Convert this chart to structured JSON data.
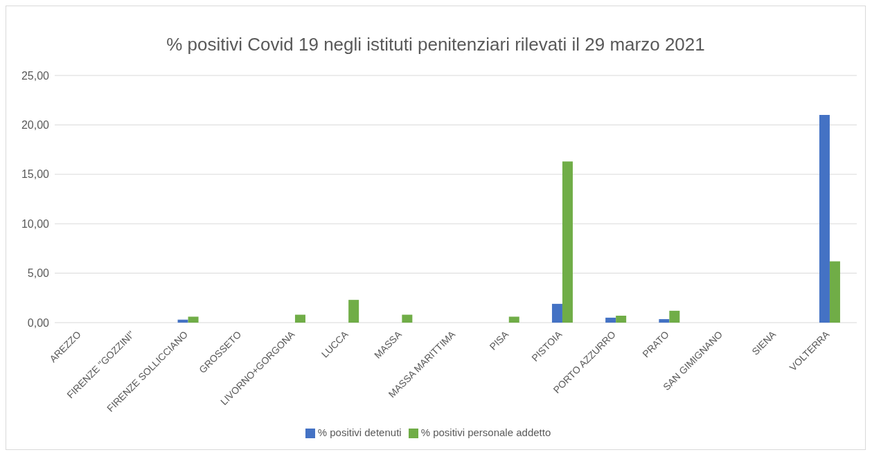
{
  "chart_data": {
    "type": "bar",
    "title": "% positivi Covid 19 negli istituti penitenziari rilevati il 29 marzo 2021",
    "categories": [
      "AREZZO",
      "FIRENZE \"GOZZINI\"",
      "FIRENZE SOLLICCIANO",
      "GROSSETO",
      "LIVORNO+GORGONA",
      "LUCCA",
      "MASSA",
      "MASSA MARITTIMA",
      "PISA",
      "PISTOIA",
      "PORTO AZZURRO",
      "PRATO",
      "SAN GIMIGNANO",
      "SIENA",
      "VOLTERRA"
    ],
    "series": [
      {
        "name": "% positivi detenuti",
        "color": "#4472c4",
        "values": [
          0,
          0,
          0.3,
          0,
          0,
          0,
          0,
          0,
          0,
          1.9,
          0.5,
          0.35,
          0,
          0,
          21.0
        ]
      },
      {
        "name": "% positivi personale addetto",
        "color": "#70ad47",
        "values": [
          0,
          0,
          0.6,
          0,
          0.8,
          2.3,
          0.8,
          0,
          0.6,
          16.3,
          0.7,
          1.2,
          0,
          0,
          6.2
        ]
      }
    ],
    "ylim": [
      0,
      25
    ],
    "yticks": [
      {
        "value": 0,
        "label": "0,00"
      },
      {
        "value": 5,
        "label": "5,00"
      },
      {
        "value": 10,
        "label": "10,00"
      },
      {
        "value": 15,
        "label": "15,00"
      },
      {
        "value": 20,
        "label": "20,00"
      },
      {
        "value": 25,
        "label": "25,00"
      }
    ],
    "grid": "y",
    "legend": "bottom"
  }
}
